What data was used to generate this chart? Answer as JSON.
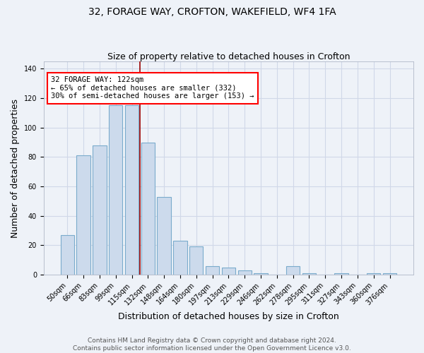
{
  "title": "32, FORAGE WAY, CROFTON, WAKEFIELD, WF4 1FA",
  "subtitle": "Size of property relative to detached houses in Crofton",
  "xlabel": "Distribution of detached houses by size in Crofton",
  "ylabel": "Number of detached properties",
  "categories": [
    "50sqm",
    "66sqm",
    "83sqm",
    "99sqm",
    "115sqm",
    "132sqm",
    "148sqm",
    "164sqm",
    "180sqm",
    "197sqm",
    "213sqm",
    "229sqm",
    "246sqm",
    "262sqm",
    "278sqm",
    "295sqm",
    "311sqm",
    "327sqm",
    "343sqm",
    "360sqm",
    "376sqm"
  ],
  "values": [
    27,
    81,
    88,
    115,
    115,
    90,
    53,
    23,
    19,
    6,
    5,
    3,
    1,
    0,
    6,
    1,
    0,
    1,
    0,
    1,
    1
  ],
  "bar_color": "#ccdaec",
  "bar_edge_color": "#7aabcc",
  "red_line_x": 4.5,
  "annotation_text_line1": "32 FORAGE WAY: 122sqm",
  "annotation_text_line2": "← 65% of detached houses are smaller (332)",
  "annotation_text_line3": "30% of semi-detached houses are larger (153) →",
  "annotation_box_color": "white",
  "annotation_box_edge_color": "red",
  "red_line_color": "#990000",
  "background_color": "#eef2f8",
  "grid_color": "#d0d8e8",
  "footer_line1": "Contains HM Land Registry data © Crown copyright and database right 2024.",
  "footer_line2": "Contains public sector information licensed under the Open Government Licence v3.0.",
  "ylim": [
    0,
    145
  ],
  "yticks": [
    0,
    20,
    40,
    60,
    80,
    100,
    120,
    140
  ],
  "title_fontsize": 10,
  "subtitle_fontsize": 9,
  "axis_label_fontsize": 9,
  "tick_fontsize": 7,
  "footer_fontsize": 6.5,
  "annotation_fontsize": 7.5
}
